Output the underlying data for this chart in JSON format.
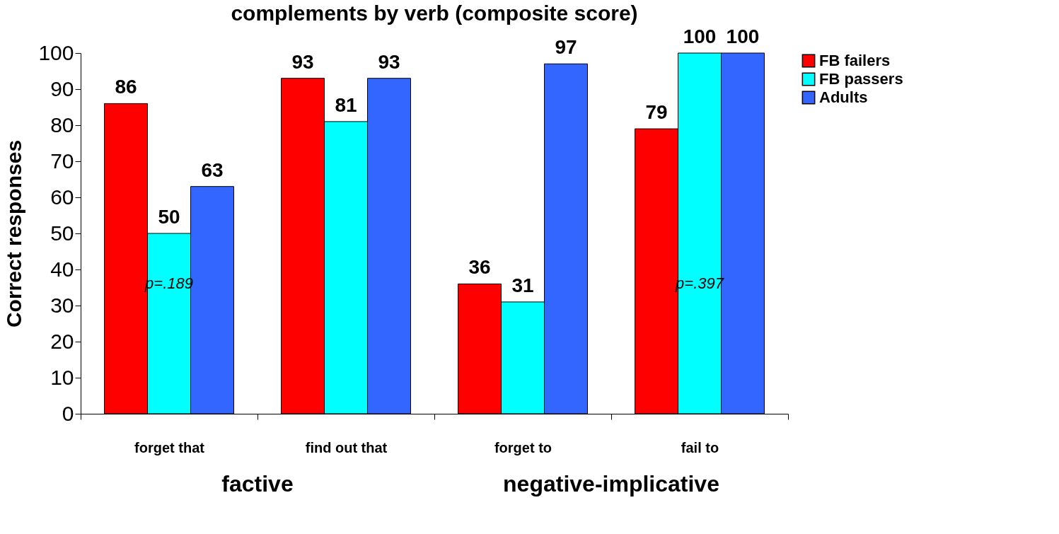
{
  "chart_data": {
    "type": "bar",
    "title": "complements by verb (composite score)",
    "ylabel": "Correct responses",
    "categories": [
      "forget that",
      "find out that",
      "forget to",
      "fail to"
    ],
    "series": [
      {
        "name": "FB failers",
        "color": "#ff0000",
        "values": [
          86,
          93,
          36,
          79
        ]
      },
      {
        "name": "FB passers",
        "color": "#00ffff",
        "values": [
          50,
          81,
          31,
          100
        ]
      },
      {
        "name": "Adults",
        "color": "#3366ff",
        "values": [
          63,
          93,
          97,
          100
        ]
      }
    ],
    "ylim": [
      0,
      100
    ],
    "yticks": [
      0,
      10,
      20,
      30,
      40,
      50,
      60,
      70,
      80,
      90,
      100
    ],
    "data_labels": true,
    "legend": "right",
    "grid": false,
    "annotations": [
      "p=.189",
      "p=.397",
      "factive",
      "negative-implicative"
    ]
  }
}
